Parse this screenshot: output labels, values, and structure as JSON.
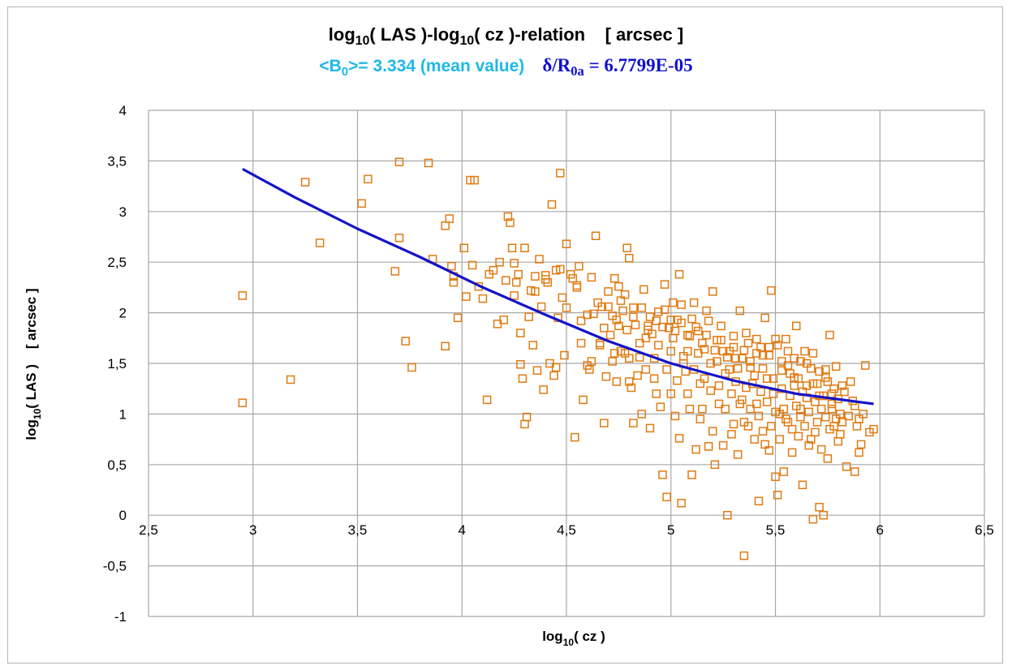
{
  "chart_data": {
    "type": "scatter",
    "title": {
      "prefix": "log",
      "sub1": "10",
      "middle": "( LAS )-log",
      "sub2": "10",
      "suffix": "( cz )-relation    [ arcsec ]"
    },
    "subtitle": {
      "mean_pre": "<B",
      "mean_sub": "0",
      "mean_post": ">= 3.334 (mean value)",
      "ratio_pre": "δ/R",
      "ratio_sub": "0a",
      "ratio_post": " = 6.7799E-05"
    },
    "xlabel": {
      "pre": "log",
      "sub": "10",
      "post": "( cz )"
    },
    "ylabel": {
      "pre": "log",
      "sub": "10",
      "post": "( LAS )    [ arcsec ]"
    },
    "xlim": [
      2.5,
      6.5
    ],
    "ylim": [
      -1,
      4
    ],
    "x_ticks": [
      "2,5",
      "3",
      "3,5",
      "4",
      "4,5",
      "5",
      "5,5",
      "6",
      "6,5"
    ],
    "y_ticks": [
      "4",
      "3,5",
      "3",
      "2,5",
      "2",
      "1,5",
      "1",
      "0,5",
      "0",
      "-0,5",
      "-1"
    ],
    "grid": true,
    "colors": {
      "points": "#e07b12",
      "fit": "#1414c8",
      "grid": "#a8a8a8"
    },
    "fit_line": {
      "x": [
        2.95,
        3.2,
        3.5,
        3.8,
        4.1,
        4.4,
        4.7,
        5.0,
        5.3,
        5.6,
        5.97
      ],
      "y": [
        3.42,
        3.14,
        2.83,
        2.55,
        2.25,
        1.98,
        1.72,
        1.5,
        1.33,
        1.2,
        1.1
      ]
    },
    "points": [
      [
        2.95,
        2.17
      ],
      [
        2.95,
        1.11
      ],
      [
        3.18,
        1.34
      ],
      [
        3.25,
        3.29
      ],
      [
        3.32,
        2.69
      ],
      [
        3.52,
        3.08
      ],
      [
        3.55,
        3.32
      ],
      [
        3.68,
        2.41
      ],
      [
        3.7,
        2.74
      ],
      [
        3.7,
        3.49
      ],
      [
        3.73,
        1.72
      ],
      [
        3.76,
        1.46
      ],
      [
        3.84,
        3.48
      ],
      [
        3.86,
        2.53
      ],
      [
        3.92,
        1.67
      ],
      [
        3.92,
        2.86
      ],
      [
        3.94,
        2.93
      ],
      [
        3.95,
        2.46
      ],
      [
        3.96,
        2.36
      ],
      [
        3.96,
        2.3
      ],
      [
        3.98,
        1.95
      ],
      [
        4.01,
        2.64
      ],
      [
        4.02,
        2.16
      ],
      [
        4.04,
        3.31
      ],
      [
        4.05,
        2.47
      ],
      [
        4.06,
        3.31
      ],
      [
        4.08,
        2.26
      ],
      [
        4.1,
        2.14
      ],
      [
        4.12,
        1.14
      ],
      [
        4.13,
        2.38
      ],
      [
        4.15,
        2.42
      ],
      [
        4.17,
        1.89
      ],
      [
        4.18,
        2.5
      ],
      [
        4.2,
        1.93
      ],
      [
        4.21,
        2.32
      ],
      [
        4.22,
        2.95
      ],
      [
        4.23,
        2.89
      ],
      [
        4.24,
        2.64
      ],
      [
        4.25,
        2.17
      ],
      [
        4.25,
        2.49
      ],
      [
        4.26,
        2.3
      ],
      [
        4.27,
        2.38
      ],
      [
        4.28,
        1.8
      ],
      [
        4.28,
        1.49
      ],
      [
        4.29,
        1.35
      ],
      [
        4.3,
        0.9
      ],
      [
        4.3,
        2.64
      ],
      [
        4.31,
        0.97
      ],
      [
        4.32,
        1.96
      ],
      [
        4.33,
        2.22
      ],
      [
        4.34,
        1.68
      ],
      [
        4.35,
        2.36
      ],
      [
        4.36,
        1.43
      ],
      [
        4.37,
        2.53
      ],
      [
        4.38,
        2.06
      ],
      [
        4.39,
        1.24
      ],
      [
        4.4,
        2.33
      ],
      [
        4.41,
        2.3
      ],
      [
        4.42,
        1.5
      ],
      [
        4.43,
        3.07
      ],
      [
        4.44,
        1.38
      ],
      [
        4.45,
        1.46
      ],
      [
        4.46,
        1.95
      ],
      [
        4.47,
        2.43
      ],
      [
        4.47,
        3.38
      ],
      [
        4.48,
        2.15
      ],
      [
        4.49,
        1.58
      ],
      [
        4.5,
        2.68
      ],
      [
        4.52,
        2.38
      ],
      [
        4.53,
        2.34
      ],
      [
        4.54,
        0.77
      ],
      [
        4.55,
        2.27
      ],
      [
        4.56,
        2.46
      ],
      [
        4.57,
        1.92
      ],
      [
        4.58,
        1.14
      ],
      [
        4.6,
        1.48
      ],
      [
        4.61,
        1.44
      ],
      [
        4.62,
        2.35
      ],
      [
        4.63,
        1.99
      ],
      [
        4.64,
        2.76
      ],
      [
        4.66,
        1.7
      ],
      [
        4.67,
        2.06
      ],
      [
        4.68,
        0.91
      ],
      [
        4.7,
        2.21
      ],
      [
        4.71,
        1.78
      ],
      [
        4.72,
        1.97
      ],
      [
        4.73,
        2.34
      ],
      [
        4.74,
        1.32
      ],
      [
        4.75,
        2.26
      ],
      [
        4.76,
        1.62
      ],
      [
        4.77,
        2.02
      ],
      [
        4.78,
        2.18
      ],
      [
        4.79,
        2.64
      ],
      [
        4.8,
        2.54
      ],
      [
        4.8,
        1.55
      ],
      [
        4.81,
        1.26
      ],
      [
        4.82,
        2.05
      ],
      [
        4.82,
        0.91
      ],
      [
        4.84,
        1.38
      ],
      [
        4.85,
        1.7
      ],
      [
        4.86,
        1.0
      ],
      [
        4.87,
        2.23
      ],
      [
        4.88,
        1.44
      ],
      [
        4.89,
        1.87
      ],
      [
        4.9,
        0.86
      ],
      [
        4.91,
        1.79
      ],
      [
        4.92,
        1.55
      ],
      [
        4.93,
        1.2
      ],
      [
        4.94,
        2.01
      ],
      [
        4.95,
        1.07
      ],
      [
        4.96,
        0.4
      ],
      [
        4.97,
        2.28
      ],
      [
        4.98,
        0.18
      ],
      [
        4.99,
        1.85
      ],
      [
        5.0,
        1.62
      ],
      [
        5.01,
        2.1
      ],
      [
        5.02,
        0.98
      ],
      [
        5.03,
        1.93
      ],
      [
        5.04,
        2.38
      ],
      [
        5.04,
        0.76
      ],
      [
        5.05,
        0.12
      ],
      [
        5.06,
        1.57
      ],
      [
        5.07,
        1.42
      ],
      [
        5.08,
        1.2
      ],
      [
        5.09,
        1.77
      ],
      [
        5.1,
        0.4
      ],
      [
        5.11,
        2.1
      ],
      [
        5.12,
        0.65
      ],
      [
        5.13,
        1.82
      ],
      [
        5.14,
        1.3
      ],
      [
        5.15,
        1.05
      ],
      [
        5.16,
        1.64
      ],
      [
        5.17,
        2.02
      ],
      [
        5.18,
        0.68
      ],
      [
        5.19,
        1.5
      ],
      [
        5.2,
        2.21
      ],
      [
        5.21,
        0.5
      ],
      [
        5.22,
        1.73
      ],
      [
        5.23,
        1.1
      ],
      [
        5.24,
        1.87
      ],
      [
        5.25,
        0.69
      ],
      [
        5.26,
        1.4
      ],
      [
        5.27,
        0.0
      ],
      [
        5.28,
        1.62
      ],
      [
        5.29,
        1.2
      ],
      [
        5.3,
        0.9
      ],
      [
        5.31,
        1.55
      ],
      [
        5.32,
        0.6
      ],
      [
        5.33,
        2.02
      ],
      [
        5.34,
        1.14
      ],
      [
        5.35,
        -0.4
      ],
      [
        5.36,
        1.8
      ],
      [
        5.37,
        0.88
      ],
      [
        5.38,
        1.46
      ],
      [
        5.39,
        1.3
      ],
      [
        5.4,
        0.75
      ],
      [
        5.41,
        1.1
      ],
      [
        5.42,
        0.14
      ],
      [
        5.43,
        1.66
      ],
      [
        5.44,
        0.83
      ],
      [
        5.45,
        1.95
      ],
      [
        5.46,
        1.35
      ],
      [
        5.47,
        0.64
      ],
      [
        5.48,
        2.22
      ],
      [
        5.49,
        1.2
      ],
      [
        5.5,
        0.38
      ],
      [
        5.51,
        0.2
      ],
      [
        5.52,
        1.0
      ],
      [
        5.53,
        1.52
      ],
      [
        5.54,
        0.43
      ],
      [
        5.55,
        1.74
      ],
      [
        5.56,
        0.92
      ],
      [
        5.57,
        1.4
      ],
      [
        5.58,
        0.62
      ],
      [
        5.59,
        1.28
      ],
      [
        5.6,
        1.87
      ],
      [
        5.61,
        0.78
      ],
      [
        5.62,
        1.05
      ],
      [
        5.63,
        0.3
      ],
      [
        5.64,
        1.62
      ],
      [
        5.65,
        1.16
      ],
      [
        5.66,
        0.69
      ],
      [
        5.67,
        1.45
      ],
      [
        5.68,
        -0.04
      ],
      [
        5.69,
        0.82
      ],
      [
        5.7,
        1.3
      ],
      [
        5.71,
        0.08
      ],
      [
        5.72,
        1.05
      ],
      [
        5.73,
        0.0
      ],
      [
        5.74,
        1.44
      ],
      [
        5.75,
        0.56
      ],
      [
        5.76,
        1.78
      ],
      [
        5.77,
        1.2
      ],
      [
        5.78,
        0.88
      ],
      [
        5.79,
        1.47
      ],
      [
        5.8,
        0.73
      ],
      [
        5.81,
        1.0
      ],
      [
        5.82,
        1.28
      ],
      [
        5.84,
        0.48
      ],
      [
        5.86,
        1.32
      ],
      [
        5.87,
        1.13
      ],
      [
        5.88,
        0.43
      ],
      [
        5.89,
        0.88
      ],
      [
        5.9,
        0.62
      ],
      [
        5.91,
        0.7
      ],
      [
        5.93,
        1.48
      ],
      [
        5.95,
        0.82
      ],
      [
        5.97,
        0.85
      ],
      [
        4.72,
        1.52
      ],
      [
        4.75,
        1.87
      ],
      [
        4.78,
        1.6
      ],
      [
        4.8,
        1.32
      ],
      [
        4.83,
        1.88
      ],
      [
        4.85,
        1.56
      ],
      [
        4.88,
        1.75
      ],
      [
        4.9,
        1.96
      ],
      [
        4.92,
        1.35
      ],
      [
        4.94,
        1.68
      ],
      [
        4.96,
        1.86
      ],
      [
        4.98,
        1.44
      ],
      [
        5.0,
        1.2
      ],
      [
        5.01,
        1.75
      ],
      [
        5.03,
        1.33
      ],
      [
        5.05,
        1.9
      ],
      [
        5.06,
        1.5
      ],
      [
        5.08,
        1.62
      ],
      [
        5.09,
        1.05
      ],
      [
        5.11,
        1.44
      ],
      [
        5.13,
        1.6
      ],
      [
        5.14,
        0.95
      ],
      [
        5.16,
        1.35
      ],
      [
        5.17,
        1.78
      ],
      [
        5.19,
        1.23
      ],
      [
        5.2,
        0.83
      ],
      [
        5.22,
        1.52
      ],
      [
        5.23,
        1.28
      ],
      [
        5.25,
        1.62
      ],
      [
        5.26,
        1.05
      ],
      [
        5.28,
        1.44
      ],
      [
        5.29,
        0.8
      ],
      [
        5.3,
        1.66
      ],
      [
        5.31,
        1.32
      ],
      [
        5.33,
        1.1
      ],
      [
        5.34,
        1.55
      ],
      [
        5.35,
        0.92
      ],
      [
        5.36,
        1.26
      ],
      [
        5.37,
        1.7
      ],
      [
        5.38,
        1.05
      ],
      [
        5.4,
        1.38
      ],
      [
        5.41,
        1.6
      ],
      [
        5.42,
        0.98
      ],
      [
        5.43,
        1.22
      ],
      [
        5.44,
        1.45
      ],
      [
        5.45,
        0.7
      ],
      [
        5.46,
        1.12
      ],
      [
        5.47,
        1.58
      ],
      [
        5.48,
        0.88
      ],
      [
        5.49,
        1.35
      ],
      [
        5.5,
        1.02
      ],
      [
        5.51,
        1.68
      ],
      [
        5.52,
        0.75
      ],
      [
        5.53,
        1.25
      ],
      [
        5.54,
        1.05
      ],
      [
        5.55,
        0.95
      ],
      [
        5.56,
        1.48
      ],
      [
        5.57,
        1.18
      ],
      [
        5.58,
        0.85
      ],
      [
        5.59,
        1.55
      ],
      [
        5.6,
        1.08
      ],
      [
        5.61,
        1.35
      ],
      [
        5.62,
        0.97
      ],
      [
        5.63,
        1.22
      ],
      [
        5.64,
        0.88
      ],
      [
        5.65,
        1.5
      ],
      [
        5.66,
        1.02
      ],
      [
        5.67,
        0.75
      ],
      [
        5.68,
        1.3
      ],
      [
        5.69,
        1.12
      ],
      [
        5.7,
        0.92
      ],
      [
        5.71,
        1.42
      ],
      [
        5.72,
        0.65
      ],
      [
        5.73,
        1.18
      ],
      [
        5.74,
        0.97
      ],
      [
        5.75,
        1.32
      ],
      [
        5.76,
        0.85
      ],
      [
        5.77,
        1.05
      ],
      [
        5.78,
        1.25
      ],
      [
        5.79,
        0.95
      ],
      [
        5.8,
        1.15
      ],
      [
        5.81,
        0.8
      ],
      [
        5.82,
        0.92
      ],
      [
        5.83,
        1.22
      ],
      [
        5.85,
        0.98
      ],
      [
        5.88,
        1.08
      ],
      [
        5.9,
        0.95
      ],
      [
        5.92,
        1.0
      ],
      [
        4.6,
        1.98
      ],
      [
        4.65,
        2.1
      ],
      [
        4.68,
        1.85
      ],
      [
        4.7,
        2.06
      ],
      [
        4.74,
        1.93
      ],
      [
        4.76,
        2.12
      ],
      [
        4.79,
        1.83
      ],
      [
        4.82,
        1.96
      ],
      [
        4.86,
        2.05
      ],
      [
        4.89,
        1.83
      ],
      [
        4.93,
        1.92
      ],
      [
        4.97,
        2.03
      ],
      [
        5.0,
        1.93
      ],
      [
        5.02,
        1.82
      ],
      [
        5.05,
        2.08
      ],
      [
        5.08,
        1.78
      ],
      [
        5.1,
        1.94
      ],
      [
        5.12,
        1.86
      ],
      [
        5.15,
        1.7
      ],
      [
        5.18,
        1.92
      ],
      [
        5.21,
        1.63
      ],
      [
        5.24,
        1.73
      ],
      [
        5.27,
        1.56
      ],
      [
        5.3,
        1.77
      ],
      [
        5.32,
        1.45
      ],
      [
        5.35,
        1.63
      ],
      [
        5.38,
        1.52
      ],
      [
        5.41,
        1.74
      ],
      [
        5.44,
        1.58
      ],
      [
        5.47,
        1.66
      ],
      [
        5.5,
        1.74
      ],
      [
        5.53,
        1.43
      ],
      [
        5.56,
        1.62
      ],
      [
        5.59,
        1.36
      ],
      [
        5.62,
        1.52
      ],
      [
        5.65,
        1.28
      ],
      [
        5.68,
        1.6
      ],
      [
        5.71,
        1.18
      ],
      [
        5.74,
        1.36
      ],
      [
        5.77,
        1.1
      ],
      [
        4.35,
        2.21
      ],
      [
        4.4,
        2.37
      ],
      [
        4.45,
        2.42
      ],
      [
        4.5,
        2.05
      ],
      [
        4.55,
        2.25
      ],
      [
        4.57,
        1.7
      ],
      [
        4.62,
        1.52
      ],
      [
        4.66,
        1.68
      ],
      [
        4.69,
        1.37
      ],
      [
        4.73,
        1.6
      ]
    ]
  }
}
